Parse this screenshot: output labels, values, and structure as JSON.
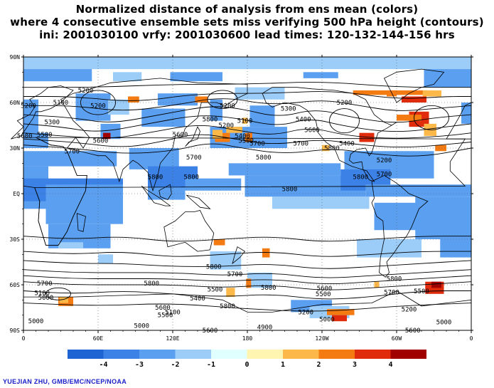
{
  "title": {
    "line1": "Normalized distance of analysis from ens mean (colors)",
    "line2": "where 4 consecutive ensemble sets miss verifying 500 hPa height (contours)",
    "line3": "ini: 2001030100 vrfy: 2001030600 lead times: 120-132-144-156 hrs"
  },
  "axes": {
    "lat_labels": [
      "90N",
      "60N",
      "30N",
      "EQ",
      "30S",
      "60S",
      "90S"
    ],
    "lon_labels": [
      "0",
      "60E",
      "120E",
      "180",
      "120W",
      "60W",
      "0"
    ]
  },
  "colorbar": {
    "labels": [
      "-4",
      "-3",
      "-2",
      "-1",
      "0",
      "1",
      "2",
      "3",
      "4"
    ],
    "colors": [
      "#1e64d2",
      "#3c82e6",
      "#5a9ff0",
      "#9ccdf8",
      "#e0ffff",
      "#fff5b0",
      "#fdb84a",
      "#f47a12",
      "#e02c0c",
      "#a00000"
    ]
  },
  "contour_labels": [
    {
      "text": "5200",
      "lon": 50,
      "lat": 68
    },
    {
      "text": "5100",
      "lon": 30,
      "lat": 60
    },
    {
      "text": "5200",
      "lon": 60,
      "lat": 58
    },
    {
      "text": "5300",
      "lon": 23,
      "lat": 47
    },
    {
      "text": "5500",
      "lon": 17,
      "lat": 39
    },
    {
      "text": "5600",
      "lon": 62,
      "lat": 35
    },
    {
      "text": "5700",
      "lon": 39,
      "lat": 28
    },
    {
      "text": "5200",
      "lon": 4,
      "lat": 58
    },
    {
      "text": "5600",
      "lon": 1,
      "lat": 38
    },
    {
      "text": "5800",
      "lon": 150,
      "lat": 49
    },
    {
      "text": "5200",
      "lon": 164,
      "lat": 58
    },
    {
      "text": "5100",
      "lon": 178,
      "lat": 48
    },
    {
      "text": "5200",
      "lon": 163,
      "lat": 45
    },
    {
      "text": "5400",
      "lon": 176,
      "lat": 38
    },
    {
      "text": "5500",
      "lon": 179,
      "lat": 35
    },
    {
      "text": "5800",
      "lon": 193,
      "lat": 24
    },
    {
      "text": "5700",
      "lon": 188,
      "lat": 33
    },
    {
      "text": "5600",
      "lon": 126,
      "lat": 39
    },
    {
      "text": "5700",
      "lon": 137,
      "lat": 24
    },
    {
      "text": "5800",
      "lon": 106,
      "lat": 11
    },
    {
      "text": "5800",
      "lon": 135,
      "lat": 11
    },
    {
      "text": "5300",
      "lon": 213,
      "lat": 56
    },
    {
      "text": "5400",
      "lon": 225,
      "lat": 49
    },
    {
      "text": "5600",
      "lon": 232,
      "lat": 42
    },
    {
      "text": "5700",
      "lon": 223,
      "lat": 33
    },
    {
      "text": "5800",
      "lon": 248,
      "lat": 30
    },
    {
      "text": "5400",
      "lon": 260,
      "lat": 33
    },
    {
      "text": "5200",
      "lon": 290,
      "lat": 22
    },
    {
      "text": "5700",
      "lon": 290,
      "lat": 13
    },
    {
      "text": "5800",
      "lon": 271,
      "lat": 11
    },
    {
      "text": "5800",
      "lon": 214,
      "lat": 3
    },
    {
      "text": "5200",
      "lon": 258,
      "lat": 60
    },
    {
      "text": "5700",
      "lon": 17,
      "lat": -59
    },
    {
      "text": "5800",
      "lon": 103,
      "lat": -59
    },
    {
      "text": "5700",
      "lon": 170,
      "lat": -53
    },
    {
      "text": "5800",
      "lon": 153,
      "lat": -48
    },
    {
      "text": "5800",
      "lon": 164,
      "lat": -74
    },
    {
      "text": "5600",
      "lon": 112,
      "lat": -75
    },
    {
      "text": "5500",
      "lon": 114,
      "lat": -80
    },
    {
      "text": "5600",
      "lon": 150,
      "lat": -90
    },
    {
      "text": "5500",
      "lon": 154,
      "lat": -95
    },
    {
      "text": "5400",
      "lon": 140,
      "lat": -105
    },
    {
      "text": "5100",
      "lon": 15,
      "lat": -99
    },
    {
      "text": "5000",
      "lon": 18,
      "lat": -104
    },
    {
      "text": "5100",
      "lon": 120,
      "lat": -120
    },
    {
      "text": "5000",
      "lon": 10,
      "lat": -130
    },
    {
      "text": "5000",
      "lon": 95,
      "lat": -135
    },
    {
      "text": "5800",
      "lon": 197,
      "lat": -93
    },
    {
      "text": "5600",
      "lon": 242,
      "lat": -94
    },
    {
      "text": "5500",
      "lon": 241,
      "lat": -100
    },
    {
      "text": "5800",
      "lon": 298,
      "lat": -56
    },
    {
      "text": "5700",
      "lon": 296,
      "lat": -65
    },
    {
      "text": "5600",
      "lon": 313,
      "lat": -90
    },
    {
      "text": "5500",
      "lon": 320,
      "lat": -97
    },
    {
      "text": "5200",
      "lon": 310,
      "lat": -117
    },
    {
      "text": "5000",
      "lon": 338,
      "lat": -131
    },
    {
      "text": "4900",
      "lon": 194,
      "lat": -144
    },
    {
      "text": "5000",
      "lon": 244,
      "lat": -128
    },
    {
      "text": "5200",
      "lon": 227,
      "lat": -120
    }
  ]
}
